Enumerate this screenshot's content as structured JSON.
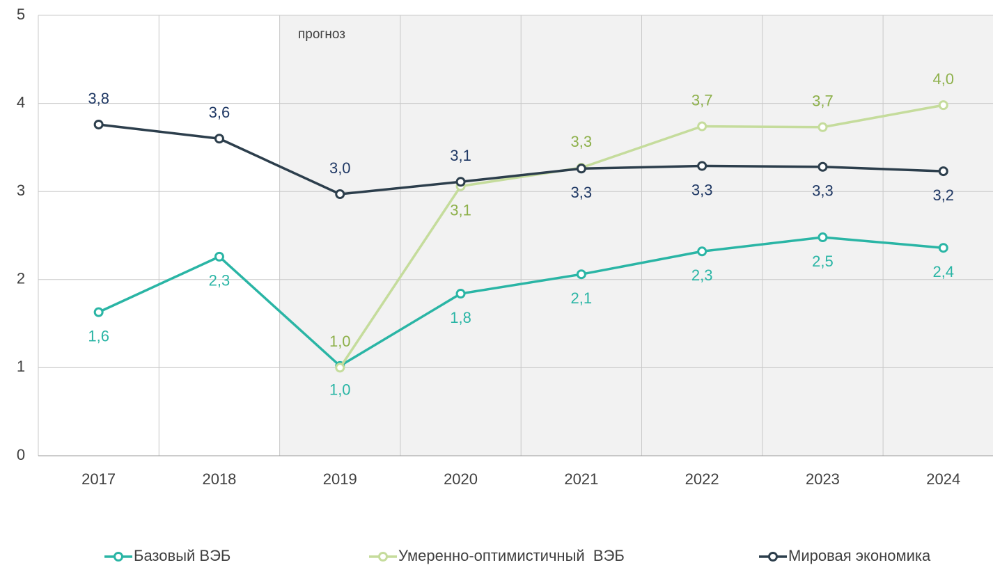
{
  "chart_data": {
    "type": "line",
    "annotation": "прогноз",
    "categories": [
      "2017",
      "2018",
      "2019",
      "2020",
      "2021",
      "2022",
      "2023",
      "2024"
    ],
    "series": [
      {
        "name": "Базовый ВЭБ",
        "color": "#2ab5a5",
        "label_color": "#2ab5a5",
        "values": [
          1.63,
          2.26,
          1.02,
          1.84,
          2.06,
          2.32,
          2.48,
          2.36
        ],
        "value_labels": [
          "1,6",
          "2,3",
          "1,0",
          "1,8",
          "2,1",
          "2,3",
          "2,5",
          "2,4"
        ]
      },
      {
        "name": "Умеренно-оптимистичный  ВЭБ",
        "color": "#c5dc9c",
        "label_color": "#8db04a",
        "values": [
          null,
          null,
          1.0,
          3.06,
          3.27,
          3.74,
          3.73,
          3.98
        ],
        "value_labels": [
          null,
          null,
          "1,0",
          "3,1",
          "3,3",
          "3,7",
          "3,7",
          "4,0"
        ]
      },
      {
        "name": "Мировая экономика",
        "color": "#2c3e4c",
        "label_color": "#1f3864",
        "values": [
          3.76,
          3.6,
          2.97,
          3.11,
          3.26,
          3.29,
          3.28,
          3.23
        ],
        "value_labels": [
          "3,8",
          "3,6",
          "3,0",
          "3,1",
          "3,3",
          "3,3",
          "3,3",
          "3,2"
        ]
      }
    ],
    "ylim": [
      0,
      5
    ],
    "yticks": [
      0,
      1,
      2,
      3,
      4,
      5
    ],
    "grid": true
  }
}
